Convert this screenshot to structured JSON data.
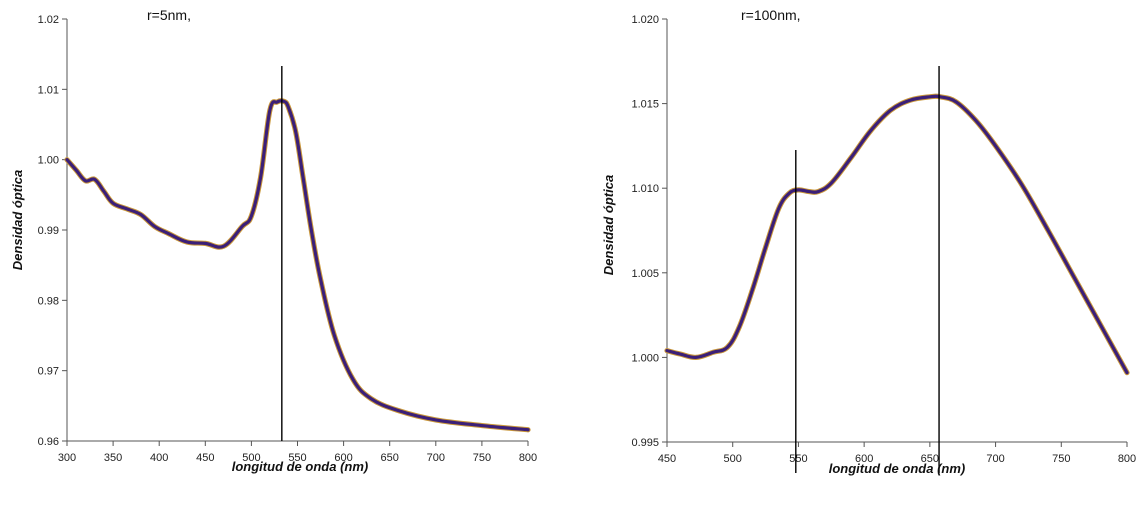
{
  "chart_data": [
    {
      "type": "line",
      "annotation": "r=5nm,",
      "xlabel": "longitud de onda (nm)",
      "ylabel": "Densidad óptica",
      "xlim": [
        300,
        800
      ],
      "ylim": [
        0.96,
        1.02
      ],
      "x_ticks": [
        300,
        350,
        400,
        450,
        500,
        550,
        600,
        650,
        700,
        750,
        800
      ],
      "y_ticks": [
        0.96,
        0.97,
        0.98,
        0.99,
        1.0,
        1.01,
        1.02
      ],
      "y_tick_labels": [
        "0.96",
        "0.97",
        "0.98",
        "0.99",
        "1.00",
        "1.01",
        "1.02"
      ],
      "series": [
        {
          "x": [
            300,
            310,
            320,
            330,
            340,
            350,
            365,
            380,
            395,
            410,
            430,
            450,
            470,
            490,
            500,
            510,
            520,
            528,
            535,
            540,
            548,
            556,
            565,
            575,
            590,
            610,
            630,
            660,
            700,
            750,
            800
          ],
          "y": [
            1.0,
            0.9985,
            0.997,
            0.9972,
            0.9955,
            0.9938,
            0.993,
            0.9922,
            0.9905,
            0.9895,
            0.9883,
            0.9881,
            0.9877,
            0.9905,
            0.992,
            0.9975,
            1.007,
            1.0082,
            1.0083,
            1.0075,
            1.004,
            0.9975,
            0.99,
            0.983,
            0.975,
            0.9688,
            0.966,
            0.9643,
            0.963,
            0.9622,
            0.9616
          ]
        }
      ],
      "vertical_lines": [
        533
      ],
      "line_color": "#3b1f78",
      "line_edge_color": "#c9973a"
    },
    {
      "type": "line",
      "annotation": "r=100nm,",
      "xlabel": "longitud de onda (nm)",
      "ylabel": "Densidad óptica",
      "xlim": [
        450,
        800
      ],
      "ylim": [
        0.995,
        1.02
      ],
      "x_ticks": [
        450,
        500,
        550,
        600,
        650,
        700,
        750,
        800
      ],
      "y_ticks": [
        0.995,
        1.0,
        1.005,
        1.01,
        1.015,
        1.02
      ],
      "y_tick_labels": [
        "0.995",
        "1.000",
        "1.005",
        "1.010",
        "1.015",
        "1.020"
      ],
      "series": [
        {
          "x": [
            450,
            460,
            472,
            485,
            496,
            505,
            515,
            525,
            535,
            543,
            550,
            558,
            565,
            575,
            590,
            605,
            620,
            635,
            650,
            658,
            670,
            685,
            700,
            720,
            740,
            760,
            780,
            800
          ],
          "y": [
            1.0004,
            1.0002,
            1.0,
            1.0003,
            1.0006,
            1.0018,
            1.004,
            1.0065,
            1.0088,
            1.0097,
            1.0099,
            1.0098,
            1.0098,
            1.0103,
            1.0118,
            1.0134,
            1.0146,
            1.0152,
            1.0154,
            1.0154,
            1.0151,
            1.014,
            1.0125,
            1.0102,
            1.0075,
            1.0047,
            1.0019,
            0.9991
          ]
        }
      ],
      "vertical_lines": [
        548,
        657
      ],
      "line_color": "#3b1f78",
      "line_edge_color": "#c9973a"
    }
  ]
}
